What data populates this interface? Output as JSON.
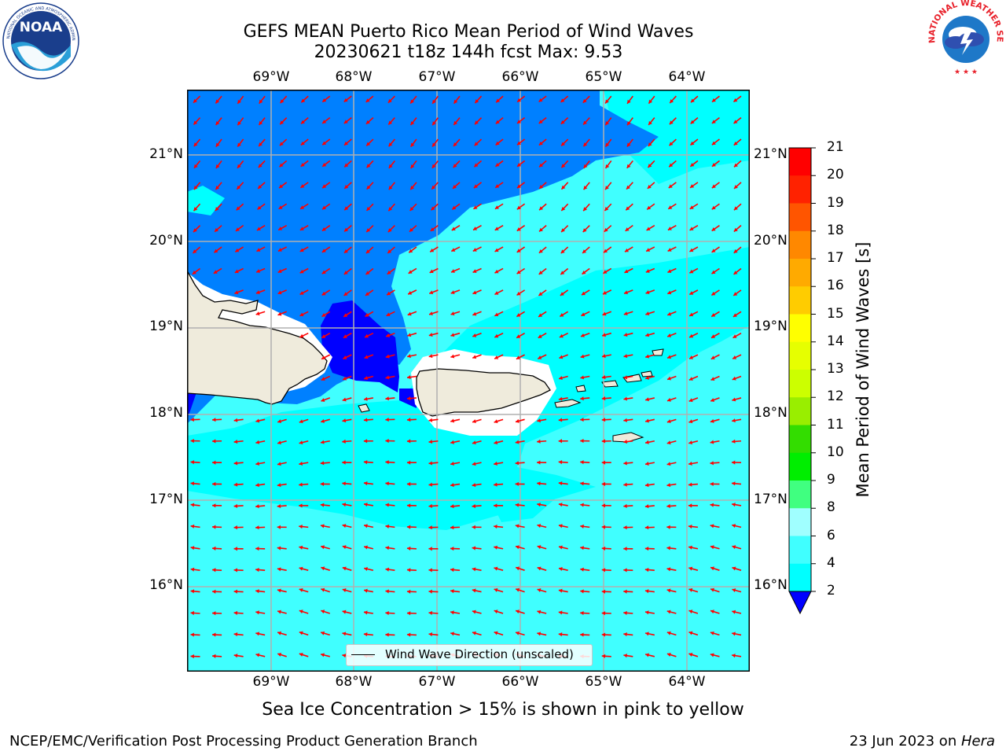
{
  "title_line1": "GEFS MEAN Puerto Rico Mean Period of Wind Waves",
  "title_line2": "20230621 t18z 144h fcst   Max: 9.53",
  "lon_labels": [
    "69°W",
    "68°W",
    "67°W",
    "66°W",
    "65°W",
    "64°W"
  ],
  "lat_labels": [
    "21°N",
    "20°N",
    "19°N",
    "18°N",
    "17°N",
    "16°N"
  ],
  "colorbar": {
    "label": "Mean Period of Wind Waves [s]",
    "ticks": [
      "2",
      "4",
      "6",
      "8",
      "9",
      "10",
      "11",
      "12",
      "13",
      "14",
      "15",
      "16",
      "17",
      "18",
      "19",
      "20",
      "21"
    ],
    "colors": [
      "#0000ff",
      "#0080ff",
      "#00ffff",
      "#40ffff",
      "#a0ffff",
      "#40ff80",
      "#00ee00",
      "#33dd00",
      "#99ee00",
      "#ccff00",
      "#e6ff00",
      "#ffff00",
      "#ffcc00",
      "#ffaa00",
      "#ff8800",
      "#ff5500",
      "#ff2200",
      "#ff0000"
    ]
  },
  "legend": {
    "label": "Wind Wave Direction (unscaled)"
  },
  "subtitle": "Sea Ice Concentration > 15% is shown in pink to yellow",
  "footer": {
    "left": "NCEP/EMC/Verification Post Processing Product Generation Branch",
    "date": "23 Jun 2023 on ",
    "host": "Hera"
  },
  "logos": {
    "noaa_text": "NOAA",
    "noaa_ring": "NATIONAL OCEANIC AND ATMOSPHERIC ADMINISTRATION · U.S. DEPARTMENT OF COMMERCE",
    "nws_ring": "NATIONAL WEATHER SERVICE"
  },
  "colors": {
    "dark_blue": "#0000ff",
    "mid_blue": "#0080ff",
    "cyan": "#00ffff",
    "light_cyan": "#40ffff",
    "land": "#efebdc",
    "arrow": "#ff0000"
  }
}
